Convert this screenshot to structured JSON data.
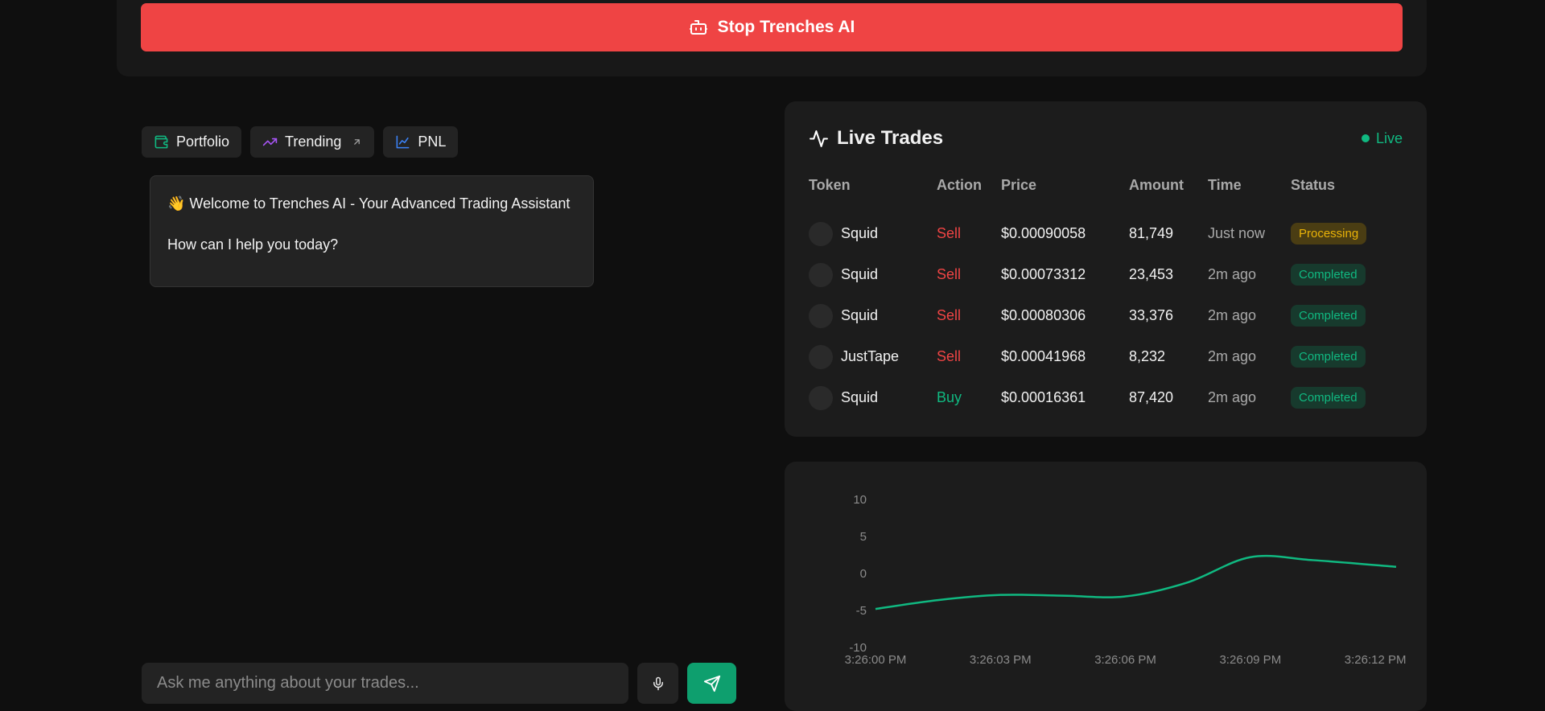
{
  "colors": {
    "background": "#0f0f0f",
    "panel": "#1c1c1c",
    "danger": "#ef4444",
    "success": "#10b981",
    "warning": "#eab308",
    "send": "#0e9f6e"
  },
  "control": {
    "stop_label": "Stop Trenches AI",
    "stop_icon": "robot-icon"
  },
  "tabs": [
    {
      "label": "Portfolio",
      "icon": "wallet-icon",
      "color": "#10b981"
    },
    {
      "label": "Trending",
      "icon": "trending-up-icon",
      "color": "#a855f7",
      "external_icon": "arrow-up-right-icon"
    },
    {
      "label": "PNL",
      "icon": "line-chart-icon",
      "color": "#3b82f6"
    }
  ],
  "chat": {
    "welcome": "👋 Welcome to Trenches AI - Your Advanced Trading Assistant",
    "prompt": "How can I help you today?",
    "input_placeholder": "Ask me anything about your trades...",
    "mic_icon": "microphone-icon",
    "send_icon": "send-icon"
  },
  "live_trades": {
    "title": "Live Trades",
    "title_icon": "activity-icon",
    "live_label": "Live",
    "columns": [
      "Token",
      "Action",
      "Price",
      "Amount",
      "Time",
      "Status"
    ],
    "rows": [
      {
        "token": "Squid",
        "action": "Sell",
        "price": "$0.00090058",
        "amount": "81,749",
        "time": "Just now",
        "status": "Processing"
      },
      {
        "token": "Squid",
        "action": "Sell",
        "price": "$0.00073312",
        "amount": "23,453",
        "time": "2m ago",
        "status": "Completed"
      },
      {
        "token": "Squid",
        "action": "Sell",
        "price": "$0.00080306",
        "amount": "33,376",
        "time": "2m ago",
        "status": "Completed"
      },
      {
        "token": "JustTape",
        "action": "Sell",
        "price": "$0.00041968",
        "amount": "8,232",
        "time": "2m ago",
        "status": "Completed"
      },
      {
        "token": "Squid",
        "action": "Buy",
        "price": "$0.00016361",
        "amount": "87,420",
        "time": "2m ago",
        "status": "Completed"
      }
    ]
  },
  "chart_data": {
    "type": "line",
    "title": "",
    "xlabel": "",
    "ylabel": "",
    "x_ticks": [
      "3:26:00 PM",
      "3:26:03 PM",
      "3:26:06 PM",
      "3:26:09 PM",
      "3:26:12 PM"
    ],
    "y_ticks": [
      "10",
      "5",
      "0",
      "-5",
      "-10"
    ],
    "ylim": [
      -10,
      10
    ],
    "xlim": [
      0,
      12.5
    ],
    "grid": false,
    "series": [
      {
        "color": "#10b981",
        "x": [
          0,
          1.5,
          3,
          4.5,
          6,
          7.5,
          9,
          10.5,
          12.5
        ],
        "y": [
          -4.8,
          -3.6,
          -2.9,
          -3.0,
          -3.1,
          -1.2,
          2.2,
          1.8,
          0.9
        ]
      }
    ]
  }
}
